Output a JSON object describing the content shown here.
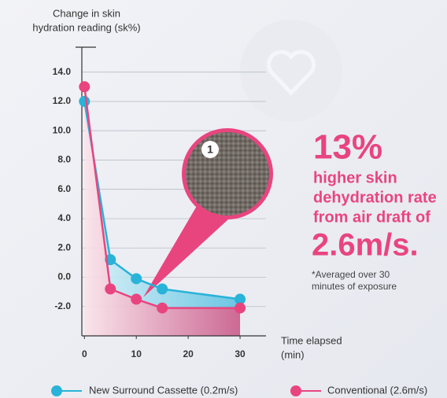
{
  "chart_data": {
    "type": "line",
    "y_label": [
      "Change in skin",
      "hydration reading (sk%)"
    ],
    "x_label": [
      "Time elapsed",
      "(min)"
    ],
    "x": [
      0,
      5,
      10,
      15,
      30
    ],
    "series": [
      {
        "name": "New Surround Cassette (0.2m/s)",
        "color": "#29b3d8",
        "values": [
          12.0,
          1.2,
          -0.1,
          -0.8,
          -1.5
        ]
      },
      {
        "name": "Conventional (2.6m/s)",
        "color": "#e8457f",
        "values": [
          13.0,
          -0.8,
          -1.5,
          -2.1,
          -2.1
        ]
      }
    ],
    "xlim": [
      -0.5,
      35
    ],
    "xticks": [
      0,
      10,
      20,
      30
    ],
    "ylim": [
      -4,
      15.7
    ],
    "yticks": [
      {
        "value": 14,
        "label": "14.0"
      },
      {
        "value": 12,
        "label": "12.0"
      },
      {
        "value": 10,
        "label": "10.0"
      },
      {
        "value": 8,
        "label": "8.0"
      },
      {
        "value": 6,
        "label": "6.0"
      },
      {
        "value": 4,
        "label": "4.0"
      },
      {
        "value": 2,
        "label": "2.0"
      },
      {
        "value": 0,
        "label": "0.0"
      },
      {
        "value": -2,
        "label": "-2.0"
      }
    ],
    "grid": true,
    "callout": {
      "number": "1"
    },
    "headline": {
      "big": "13%",
      "lines": [
        "higher skin",
        "dehydration rate",
        "from air draft of"
      ],
      "speed": "2.6m/s.",
      "note": [
        "*Averaged over 30",
        "minutes of exposure"
      ]
    }
  }
}
